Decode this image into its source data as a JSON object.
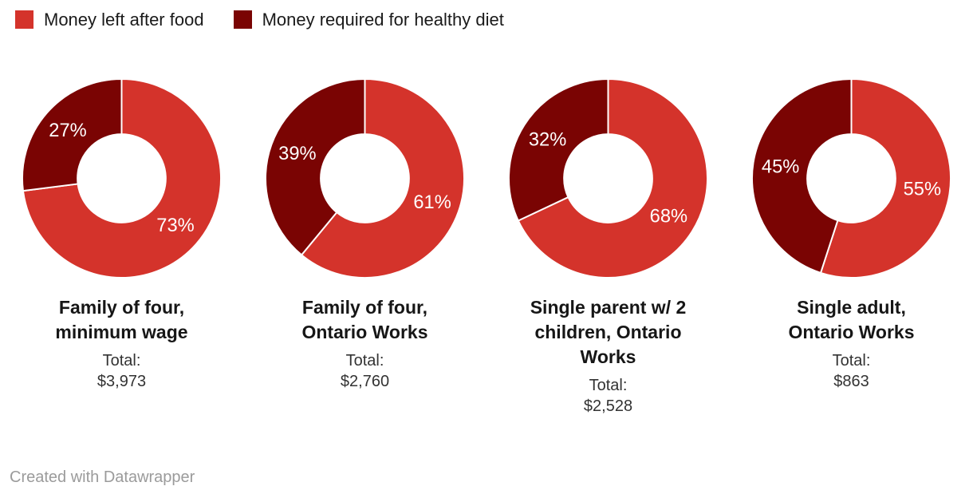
{
  "legend": {
    "items": [
      {
        "label": "Money left after food",
        "color": "#d4332b"
      },
      {
        "label": "Money required for healthy diet",
        "color": "#7a0403"
      }
    ]
  },
  "chart_data": {
    "type": "pie",
    "subtype": "donut-small-multiples",
    "series": [
      "Money left after food",
      "Money required for healthy diet"
    ],
    "colors": [
      "#d4332b",
      "#7a0403"
    ],
    "unit": "%",
    "start_angle_deg": 0,
    "direction": "clockwise",
    "label_position": "inside-mid-radius",
    "label_color": "#ffffff",
    "charts": [
      {
        "title": "Family of four,\nminimum wage",
        "total_label": "Total:",
        "total_value": "$3,973",
        "values": [
          73,
          27
        ],
        "labels": [
          "73%",
          "27%"
        ]
      },
      {
        "title": "Family of four,\nOntario Works",
        "total_label": "Total:",
        "total_value": "$2,760",
        "values": [
          61,
          39
        ],
        "labels": [
          "61%",
          "39%"
        ]
      },
      {
        "title": "Single parent w/ 2\nchildren, Ontario\nWorks",
        "total_label": "Total:",
        "total_value": "$2,528",
        "values": [
          68,
          32
        ],
        "labels": [
          "68%",
          "32%"
        ]
      },
      {
        "title": "Single adult,\nOntario Works",
        "total_label": "Total:",
        "total_value": "$863",
        "values": [
          55,
          45
        ],
        "labels": [
          "55%",
          "45%"
        ]
      }
    ]
  },
  "footer": {
    "credit": "Created with Datawrapper"
  }
}
